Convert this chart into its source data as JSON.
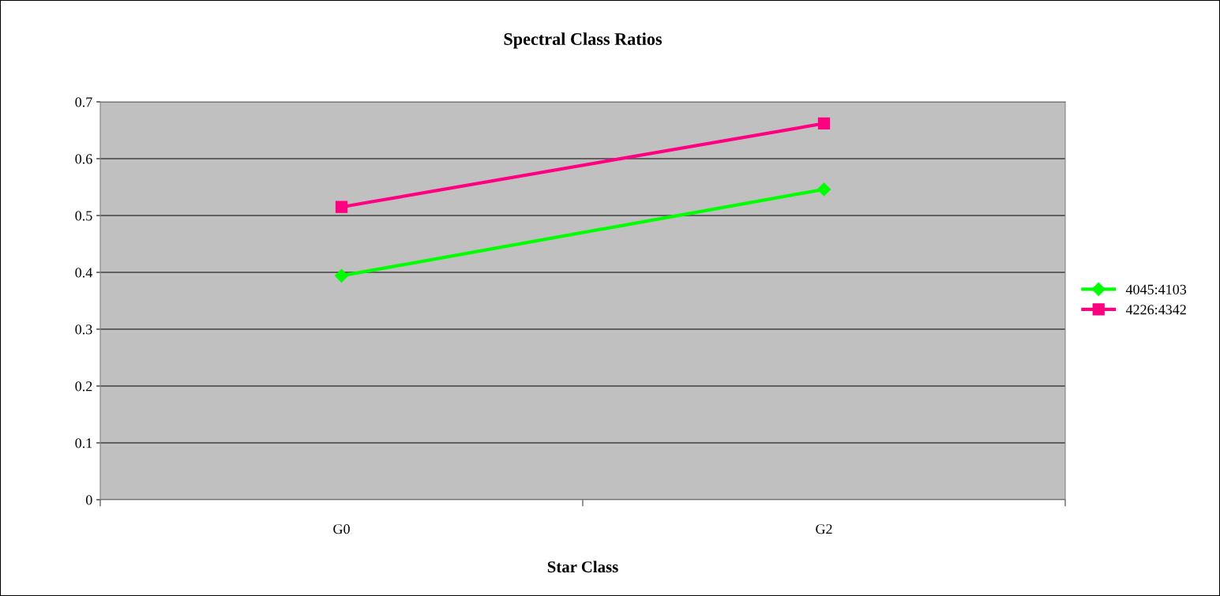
{
  "chart_data": {
    "type": "line",
    "title": "Spectral Class Ratios",
    "xlabel": "Star Class",
    "categories": [
      "G0",
      "G2"
    ],
    "series": [
      {
        "name": "4045:4103",
        "color": "#00ff00",
        "marker": "diamond",
        "values": [
          0.394,
          0.546
        ]
      },
      {
        "name": "4226:4342",
        "color": "#ff0080",
        "marker": "square",
        "values": [
          0.515,
          0.662
        ]
      }
    ],
    "ylim": [
      0,
      0.7
    ],
    "yticks": [
      0,
      0.1,
      0.2,
      0.3,
      0.4,
      0.5,
      0.6,
      0.7
    ],
    "grid": "y",
    "legend": "right"
  }
}
